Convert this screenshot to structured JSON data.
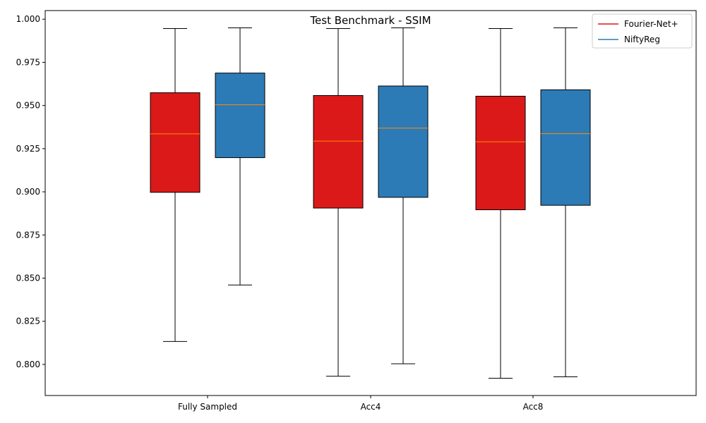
{
  "chart_data": {
    "type": "box",
    "title": "Test Benchmark - SSIM",
    "xlabel": "",
    "ylabel": "",
    "categories": [
      "Fully Sampled",
      "Acc4",
      "Acc8"
    ],
    "ylim": [
      0.782,
      1.005
    ],
    "yticks": [
      "0.800",
      "0.825",
      "0.850",
      "0.875",
      "0.900",
      "0.925",
      "0.950",
      "0.975",
      "1.000"
    ],
    "legend_position": "top-right",
    "grid": false,
    "series": [
      {
        "name": "Fourier-Net+",
        "color": "#dc1919",
        "boxes": [
          {
            "min": 0.8133,
            "q1": 0.8997,
            "median": 0.9336,
            "q3": 0.9574,
            "max": 0.9946
          },
          {
            "min": 0.7932,
            "q1": 0.8906,
            "median": 0.9294,
            "q3": 0.9558,
            "max": 0.9946
          },
          {
            "min": 0.792,
            "q1": 0.8896,
            "median": 0.929,
            "q3": 0.9554,
            "max": 0.9946
          }
        ]
      },
      {
        "name": "NiftyReg",
        "color": "#2c7bb6",
        "boxes": [
          {
            "min": 0.846,
            "q1": 0.9198,
            "median": 0.9504,
            "q3": 0.9688,
            "max": 0.995
          },
          {
            "min": 0.8004,
            "q1": 0.8968,
            "median": 0.9369,
            "q3": 0.9613,
            "max": 0.995
          },
          {
            "min": 0.7928,
            "q1": 0.8922,
            "median": 0.9337,
            "q3": 0.9591,
            "max": 0.995
          }
        ]
      }
    ],
    "median_color": "#ff8c00"
  }
}
